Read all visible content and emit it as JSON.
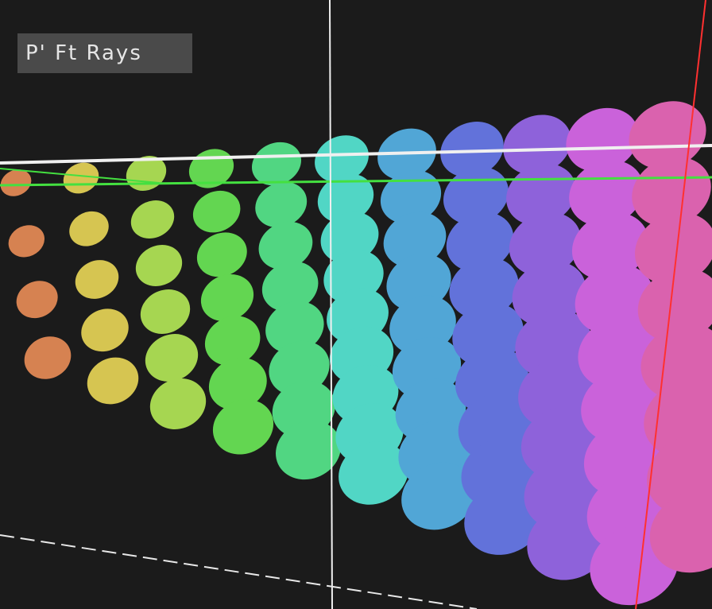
{
  "viewport": {
    "label": "P'  Ft Rays"
  }
}
